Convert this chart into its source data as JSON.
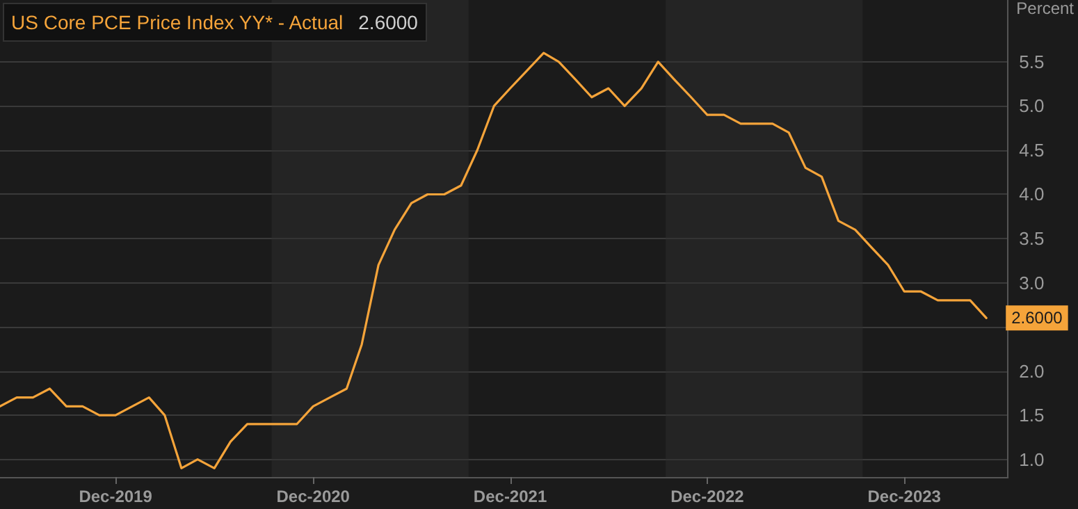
{
  "chart_data": {
    "type": "line",
    "title": "US Core PCE Price Index YY* - Actual",
    "annotations": [
      "2.6000"
    ],
    "ylabel": "Percent",
    "x": [
      "2019-05",
      "2019-06",
      "2019-07",
      "2019-08",
      "2019-09",
      "2019-10",
      "2019-11",
      "2019-12",
      "2020-01",
      "2020-02",
      "2020-03",
      "2020-04",
      "2020-05",
      "2020-06",
      "2020-07",
      "2020-08",
      "2020-09",
      "2020-10",
      "2020-11",
      "2020-12",
      "2021-01",
      "2021-02",
      "2021-03",
      "2021-04",
      "2021-05",
      "2021-06",
      "2021-07",
      "2021-08",
      "2021-09",
      "2021-10",
      "2021-11",
      "2021-12",
      "2022-01",
      "2022-02",
      "2022-03",
      "2022-04",
      "2022-05",
      "2022-06",
      "2022-07",
      "2022-08",
      "2022-09",
      "2022-10",
      "2022-11",
      "2022-12",
      "2023-01",
      "2023-02",
      "2023-03",
      "2023-04",
      "2023-05",
      "2023-06",
      "2023-07",
      "2023-08",
      "2023-09",
      "2023-10",
      "2023-11",
      "2023-12",
      "2024-01",
      "2024-02",
      "2024-03",
      "2024-04",
      "2024-05"
    ],
    "series": [
      {
        "color": "#f5a43a",
        "values": [
          1.6,
          1.7,
          1.7,
          1.8,
          1.6,
          1.6,
          1.5,
          1.5,
          1.6,
          1.7,
          1.5,
          0.9,
          1.0,
          0.9,
          1.2,
          1.4,
          1.4,
          1.4,
          1.4,
          1.6,
          1.7,
          1.8,
          2.3,
          3.2,
          3.6,
          3.9,
          4.0,
          4.0,
          4.1,
          4.5,
          5.0,
          5.2,
          5.4,
          5.6,
          5.5,
          5.3,
          5.1,
          5.2,
          5.0,
          5.2,
          5.5,
          5.3,
          5.1,
          4.9,
          4.9,
          4.8,
          4.8,
          4.8,
          4.7,
          4.3,
          4.2,
          3.7,
          3.6,
          3.4,
          3.2,
          2.9,
          2.9,
          2.8,
          2.8,
          2.8,
          2.6
        ],
        "value_labels": [
          null,
          null,
          null,
          null,
          null,
          null,
          null,
          null,
          null,
          null,
          null,
          null,
          null,
          null,
          null,
          null,
          null,
          null,
          null,
          null,
          null,
          null,
          null,
          null,
          null,
          null,
          null,
          null,
          null,
          null,
          null,
          null,
          null,
          null,
          null,
          null,
          null,
          null,
          null,
          null,
          null,
          null,
          null,
          null,
          null,
          null,
          null,
          null,
          null,
          null,
          null,
          null,
          null,
          null,
          null,
          null,
          null,
          null,
          null,
          null,
          "2.6000"
        ]
      }
    ],
    "xlim": [
      "2019-05",
      "2024-06-10"
    ],
    "xticks": [
      {
        "value": "2019-12",
        "label": "Dec-2019"
      },
      {
        "value": "2020-12",
        "label": "Dec-2020"
      },
      {
        "value": "2021-12",
        "label": "Dec-2021"
      },
      {
        "value": "2022-12",
        "label": "Dec-2022"
      },
      {
        "value": "2023-12",
        "label": "Dec-2023"
      }
    ],
    "ylim": [
      0.8,
      6.2
    ],
    "yticks": [
      {
        "value": 1,
        "label": "1.0"
      },
      {
        "value": 1.5,
        "label": "1.5"
      },
      {
        "value": 2,
        "label": "2.0"
      },
      {
        "value": 2.5,
        "label": null
      },
      {
        "value": 3,
        "label": "3.0"
      },
      {
        "value": 3.5,
        "label": "3.5"
      },
      {
        "value": 4,
        "label": "4.0"
      },
      {
        "value": 4.5,
        "label": "4.5"
      },
      {
        "value": 5,
        "label": "5.0"
      },
      {
        "value": 5.5,
        "label": "5.5"
      }
    ],
    "bands": [
      {
        "axis": "x",
        "from": "2020-09-15",
        "to": "2021-09-15",
        "color": "#2e2e2e"
      },
      {
        "axis": "x",
        "from": "2022-09-15",
        "to": "2023-09-15",
        "color": "#2e2e2e"
      }
    ],
    "grid": "y",
    "marker": "none",
    "line_style": "solid"
  }
}
